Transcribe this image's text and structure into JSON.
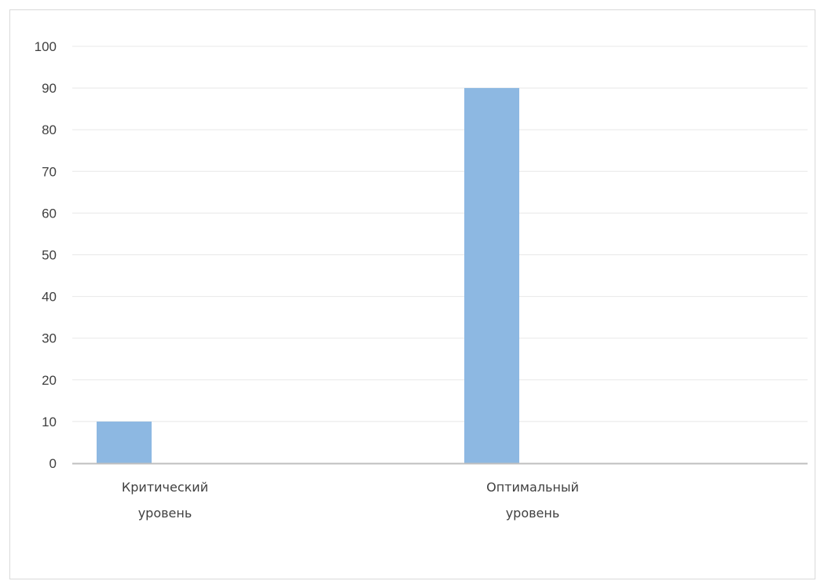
{
  "chart_data": {
    "type": "bar",
    "categories": [
      [
        "Критический",
        "уровень"
      ],
      [
        "Оптимальный",
        "уровень"
      ]
    ],
    "series": [
      {
        "values": [
          10,
          90
        ],
        "color": "#8db8e2"
      }
    ],
    "ylim": [
      0,
      100
    ],
    "yticks": [
      0,
      10,
      20,
      30,
      40,
      50,
      60,
      70,
      80,
      90,
      100
    ],
    "grid": true,
    "legend": "none"
  }
}
